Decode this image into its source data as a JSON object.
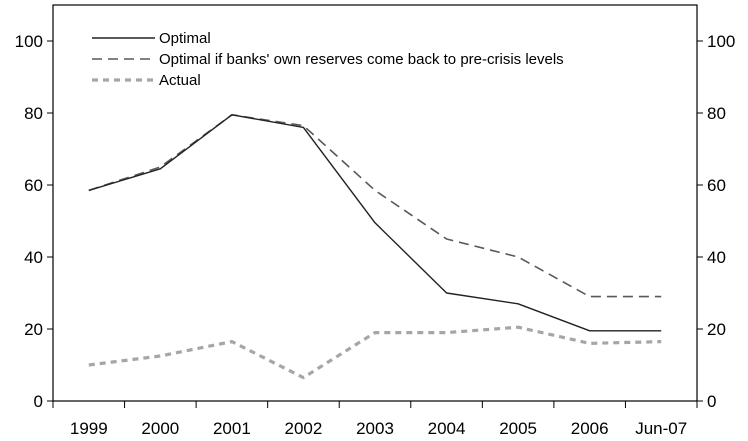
{
  "chart_data": {
    "type": "line",
    "title": "",
    "xlabel": "",
    "ylabel": "",
    "categories": [
      "1999",
      "2000",
      "2001",
      "2002",
      "2003",
      "2004",
      "2005",
      "2006",
      "Jun-07"
    ],
    "ylim": [
      0,
      110
    ],
    "yticks": [
      0,
      20,
      40,
      60,
      80,
      100
    ],
    "secondary_y_axis": true,
    "grid": false,
    "legend_position": "top-left",
    "series": [
      {
        "name": "Optimal",
        "style": "solid",
        "color": "#222222",
        "values": [
          58.5,
          64.5,
          79.5,
          76,
          49.5,
          30,
          27,
          19.5,
          19.5
        ]
      },
      {
        "name": "Optimal if banks' own reserves come back to pre-crisis levels",
        "style": "dashed",
        "color": "#595959",
        "values": [
          58.5,
          65,
          79.5,
          76.5,
          58.5,
          45,
          40,
          29,
          29
        ]
      },
      {
        "name": "Actual",
        "style": "dotted",
        "color": "#a6a6a6",
        "values": [
          10,
          12.5,
          16.5,
          6.5,
          19,
          19,
          20.5,
          16,
          16.5
        ]
      }
    ]
  }
}
